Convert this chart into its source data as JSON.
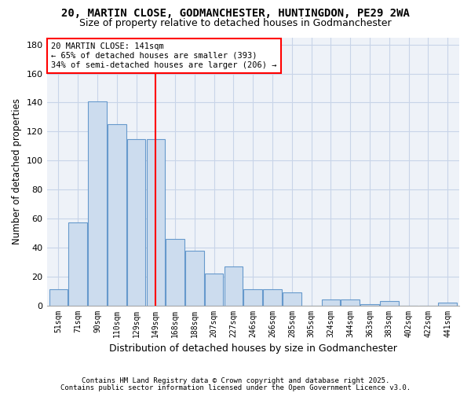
{
  "title1": "20, MARTIN CLOSE, GODMANCHESTER, HUNTINGDON, PE29 2WA",
  "title2": "Size of property relative to detached houses in Godmanchester",
  "xlabel": "Distribution of detached houses by size in Godmanchester",
  "ylabel": "Number of detached properties",
  "categories": [
    "51sqm",
    "71sqm",
    "90sqm",
    "110sqm",
    "129sqm",
    "149sqm",
    "168sqm",
    "188sqm",
    "207sqm",
    "227sqm",
    "246sqm",
    "266sqm",
    "285sqm",
    "305sqm",
    "324sqm",
    "344sqm",
    "363sqm",
    "383sqm",
    "402sqm",
    "422sqm",
    "441sqm"
  ],
  "values": [
    11,
    57,
    141,
    125,
    115,
    115,
    46,
    38,
    22,
    27,
    11,
    11,
    9,
    0,
    4,
    4,
    1,
    3,
    0,
    0,
    2
  ],
  "bar_color": "#ccdcee",
  "bar_edge_color": "#6699cc",
  "vline_x": 5.0,
  "vline_color": "red",
  "annotation_text": "20 MARTIN CLOSE: 141sqm\n← 65% of detached houses are smaller (393)\n34% of semi-detached houses are larger (206) →",
  "annotation_box_color": "white",
  "annotation_box_edge": "red",
  "ylim": [
    0,
    185
  ],
  "yticks": [
    0,
    20,
    40,
    60,
    80,
    100,
    120,
    140,
    160,
    180
  ],
  "fig_bg_color": "#ffffff",
  "ax_bg_color": "#eef2f8",
  "grid_color": "#c8d4e8",
  "footer1": "Contains HM Land Registry data © Crown copyright and database right 2025.",
  "footer2": "Contains public sector information licensed under the Open Government Licence v3.0."
}
